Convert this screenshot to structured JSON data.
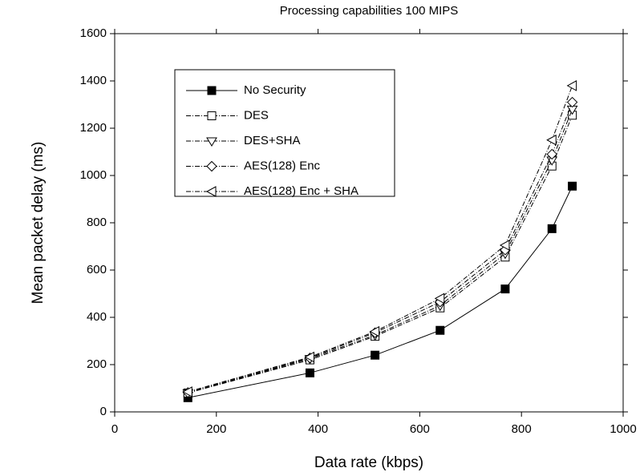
{
  "chart_data": {
    "type": "line",
    "title": "Processing capabilities 100 MIPS",
    "x_label": "Data rate (kbps)",
    "y_label": "Mean packet delay (ms)",
    "x": [
      144,
      384,
      512,
      640,
      768,
      860,
      900
    ],
    "series": [
      {
        "name": "No Security",
        "color": "#000000",
        "marker": "square-filled",
        "dash": "solid",
        "values": [
          60,
          165,
          240,
          345,
          520,
          775,
          955
        ]
      },
      {
        "name": "DES",
        "color": "#000000",
        "marker": "square",
        "dash": "dashdot",
        "values": [
          80,
          220,
          320,
          440,
          655,
          1040,
          1255
        ]
      },
      {
        "name": "DES+SHA",
        "color": "#000000",
        "marker": "triangle-down",
        "dash": "dashdot",
        "values": [
          80,
          225,
          325,
          450,
          670,
          1065,
          1280
        ]
      },
      {
        "name": "AES(128) Enc",
        "color": "#000000",
        "marker": "diamond",
        "dash": "dashdot",
        "values": [
          82,
          228,
          335,
          465,
          685,
          1090,
          1310
        ]
      },
      {
        "name": "AES(128) Enc + SHA",
        "color": "#000000",
        "marker": "triangle-left",
        "dash": "dashdot",
        "values": [
          85,
          232,
          340,
          480,
          705,
          1150,
          1380
        ]
      }
    ],
    "xlim": [
      0,
      1000
    ],
    "xticks": [
      0,
      200,
      400,
      600,
      800,
      1000
    ],
    "ylim": [
      0,
      1600
    ],
    "yticks": [
      0,
      200,
      400,
      600,
      800,
      1000,
      1200,
      1400,
      1600
    ],
    "grid": false,
    "legend_position": "upper-left"
  }
}
